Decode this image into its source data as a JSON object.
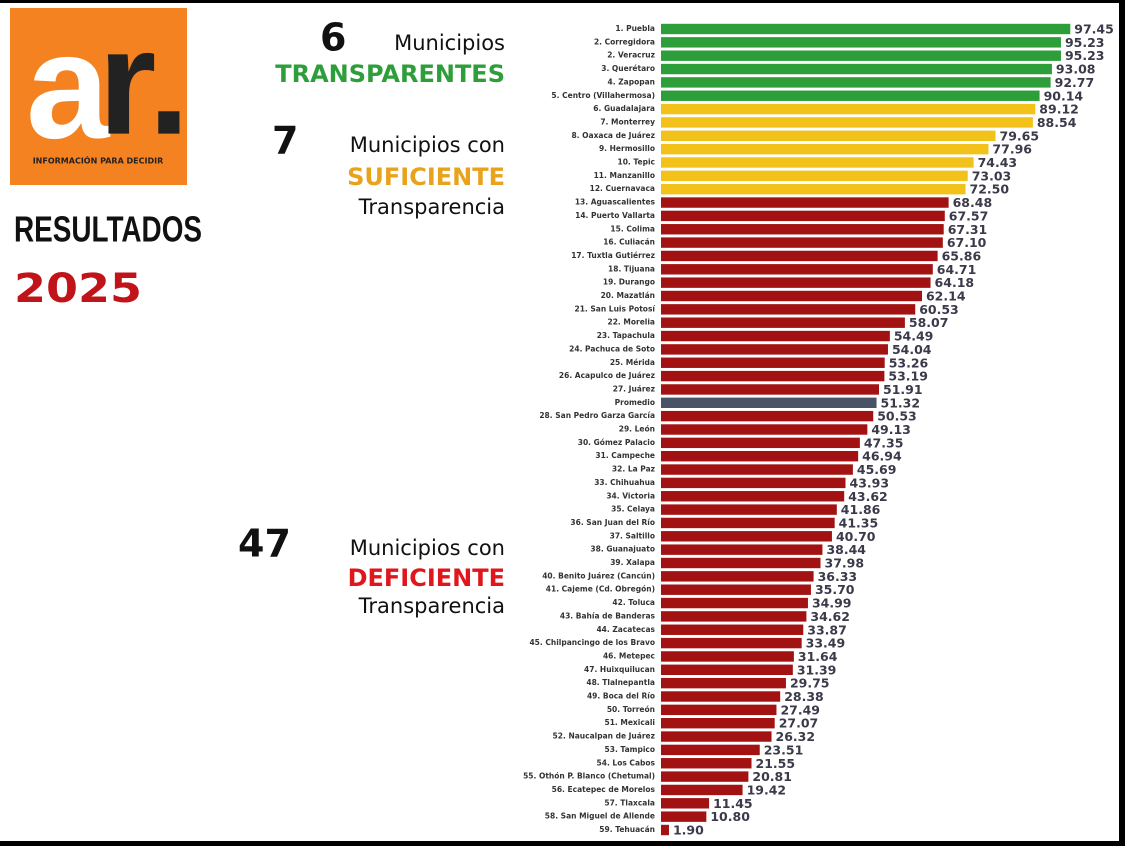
{
  "logo": {
    "mark_a": "a",
    "mark_r": "r.",
    "tagline": "INFORMACIÓN PARA DECIDIR"
  },
  "headline": {
    "title": "RESULTADOS",
    "year": "2025"
  },
  "groups": [
    {
      "count": 6,
      "line1": "Municipios",
      "highlight": "TRANSPARENTES"
    },
    {
      "count": 7,
      "line1": "Municipios con",
      "highlight": "SUFICIENTE",
      "line3": "Transparencia"
    },
    {
      "count": 47,
      "line1": "Municipios con",
      "highlight": "DEFICIENTE",
      "line3": "Transparencia"
    }
  ],
  "chart_data": {
    "type": "bar",
    "orientation": "horizontal",
    "xlim": [
      0,
      100
    ],
    "categories": [
      "1. Puebla",
      "2. Corregidora",
      "2. Veracruz",
      "3. Querétaro",
      "4. Zapopan",
      "5. Centro (Villahermosa)",
      "6. Guadalajara",
      "7. Monterrey",
      "8. Oaxaca de Juárez",
      "9. Hermosillo",
      "10. Tepic",
      "11. Manzanillo",
      "12. Cuernavaca",
      "13. Aguascalientes",
      "14. Puerto Vallarta",
      "15. Colima",
      "16. Culiacán",
      "17. Tuxtla Gutiérrez",
      "18. Tijuana",
      "19. Durango",
      "20. Mazatlán",
      "21. San Luis Potosí",
      "22. Morelia",
      "23. Tapachula",
      "24. Pachuca de Soto",
      "25. Mérida",
      "26. Acapulco de Juárez",
      "27. Juárez",
      "Promedio",
      "28. San Pedro Garza García",
      "29. León",
      "30. Gómez Palacio",
      "31. Campeche",
      "32. La Paz",
      "33. Chihuahua",
      "34. Victoria",
      "35. Celaya",
      "36. San Juan del Río",
      "37. Saltillo",
      "38. Guanajuato",
      "39. Xalapa",
      "40. Benito Juárez (Cancún)",
      "41. Cajeme (Cd. Obregón)",
      "42. Toluca",
      "43. Bahía de Banderas",
      "44. Zacatecas",
      "45. Chilpancingo de los Bravo",
      "46. Metepec",
      "47. Huixquilucan",
      "48. Tlalnepantla",
      "49. Boca del Río",
      "50. Torreón",
      "51. Mexicali",
      "52. Naucalpan de Juárez",
      "53. Tampico",
      "54. Los Cabos",
      "55. Othón P. Blanco (Chetumal)",
      "56. Ecatepec de Morelos",
      "57. Tlaxcala",
      "58. San Miguel de Allende",
      "59. Tehuacán"
    ],
    "values": [
      97.45,
      95.23,
      95.23,
      93.08,
      92.77,
      90.14,
      89.12,
      88.54,
      79.65,
      77.96,
      74.43,
      73.03,
      72.5,
      68.48,
      67.57,
      67.31,
      67.1,
      65.86,
      64.71,
      64.18,
      62.14,
      60.53,
      58.07,
      54.49,
      54.04,
      53.26,
      53.19,
      51.91,
      51.32,
      50.53,
      49.13,
      47.35,
      46.94,
      45.69,
      43.93,
      43.62,
      41.86,
      41.35,
      40.7,
      38.44,
      37.98,
      36.33,
      35.7,
      34.99,
      34.62,
      33.87,
      33.49,
      31.64,
      31.39,
      29.75,
      28.38,
      27.49,
      27.07,
      26.32,
      23.51,
      21.55,
      20.81,
      19.42,
      11.45,
      10.8,
      1.9
    ],
    "value_labels": [
      "97.45",
      "95.23",
      "95.23",
      "93.08",
      "92.77",
      "90.14",
      "89.12",
      "88.54",
      "79.65",
      "77.96",
      "74.43",
      "73.03",
      "72.50",
      "68.48",
      "67.57",
      "67.31",
      "67.10",
      "65.86",
      "64.71",
      "64.18",
      "62.14",
      "60.53",
      "58.07",
      "54.49",
      "54.04",
      "53.26",
      "53.19",
      "51.91",
      "51.32",
      "50.53",
      "49.13",
      "47.35",
      "46.94",
      "45.69",
      "43.93",
      "43.62",
      "41.86",
      "41.35",
      "40.70",
      "38.44",
      "37.98",
      "36.33",
      "35.70",
      "34.99",
      "34.62",
      "33.87",
      "33.49",
      "31.64",
      "31.39",
      "29.75",
      "28.38",
      "27.49",
      "27.07",
      "26.32",
      "23.51",
      "21.55",
      "20.81",
      "19.42",
      "11.45",
      "10.80",
      "1.90"
    ],
    "colors": [
      "#2e9e3a",
      "#2e9e3a",
      "#2e9e3a",
      "#2e9e3a",
      "#2e9e3a",
      "#2e9e3a",
      "#f2c21b",
      "#f2c21b",
      "#f2c21b",
      "#f2c21b",
      "#f2c21b",
      "#f2c21b",
      "#f2c21b",
      "#a31212",
      "#a31212",
      "#a31212",
      "#a31212",
      "#a31212",
      "#a31212",
      "#a31212",
      "#a31212",
      "#a31212",
      "#a31212",
      "#a31212",
      "#a31212",
      "#a31212",
      "#a31212",
      "#a31212",
      "#4a5366",
      "#a31212",
      "#a31212",
      "#a31212",
      "#a31212",
      "#a31212",
      "#a31212",
      "#a31212",
      "#a31212",
      "#a31212",
      "#a31212",
      "#a31212",
      "#a31212",
      "#a31212",
      "#a31212",
      "#a31212",
      "#a31212",
      "#a31212",
      "#a31212",
      "#a31212",
      "#a31212",
      "#a31212",
      "#a31212",
      "#a31212",
      "#a31212",
      "#a31212",
      "#a31212",
      "#a31212",
      "#a31212",
      "#a31212",
      "#a31212",
      "#a31212",
      "#a31212"
    ],
    "highlight_label_color": {
      "index": 28,
      "color": "#d0161d"
    }
  }
}
